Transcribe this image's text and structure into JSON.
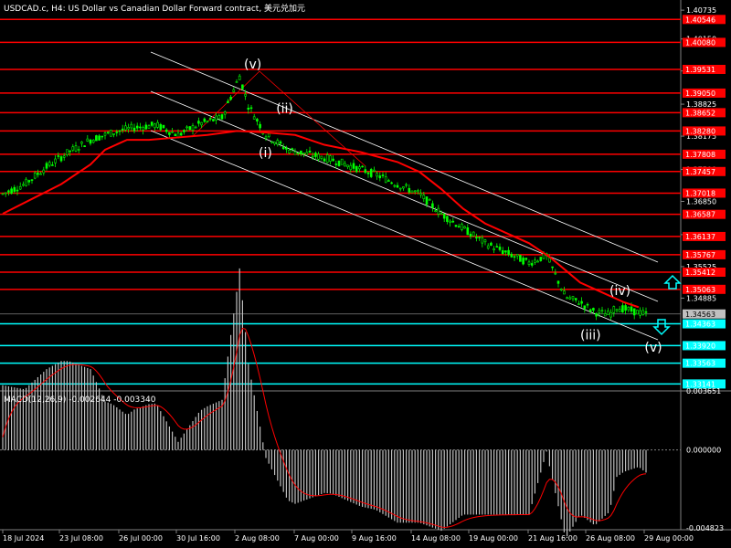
{
  "window": {
    "title": "USDCAD.c, H4:  US Dollar vs Canadian Dollar Forward contract, 美元兑加元",
    "macd_title": "MACD(12,26,9) -0.002644 -0.003340"
  },
  "colors": {
    "background": "#000000",
    "candle": "#00ff00",
    "ma": "#ff0000",
    "resistance": "#ff0000",
    "support": "#00ffff",
    "channel": "#ffffff",
    "macd_hist": "#c0c0c0",
    "macd_signal": "#ff0000"
  },
  "chart_data": [
    {
      "type": "candlestick",
      "symbol": "USDCAD.c",
      "timeframe": "H4",
      "y_range": [
        1.33,
        1.4083
      ],
      "x_labels": [
        "18 Jul 2024",
        "23 Jul 08:00",
        "26 Jul 00:00",
        "30 Jul 16:00",
        "2 Aug 08:00",
        "7 Aug 00:00",
        "9 Aug 16:00",
        "14 Aug 08:00",
        "19 Aug 00:00",
        "21 Aug 16:00",
        "26 Aug 08:00",
        "29 Aug 00:00"
      ],
      "y_ticks": [
        "1.40735",
        "1.40150",
        "1.39500",
        "1.38825",
        "1.38175",
        "1.37500",
        "1.36850",
        "1.36175",
        "1.35525",
        "1.34885"
      ],
      "resistance_levels": [
        1.40546,
        1.4008,
        1.39531,
        1.3905,
        1.38652,
        1.3828,
        1.37808,
        1.37457,
        1.37018,
        1.36587,
        1.36137,
        1.35767,
        1.35412,
        1.35063
      ],
      "support_levels": [
        1.34363,
        1.3392,
        1.33563,
        1.33141
      ],
      "current_price": 1.34563,
      "price_path": [
        [
          0,
          1.37
        ],
        [
          15,
          1.372
        ],
        [
          30,
          1.3755
        ],
        [
          45,
          1.3785
        ],
        [
          60,
          1.381
        ],
        [
          75,
          1.3825
        ],
        [
          90,
          1.3835
        ],
        [
          105,
          1.384
        ],
        [
          120,
          1.382
        ],
        [
          135,
          1.3843
        ],
        [
          150,
          1.3855
        ],
        [
          162,
          1.394
        ],
        [
          168,
          1.388
        ],
        [
          180,
          1.382
        ],
        [
          195,
          1.379
        ],
        [
          210,
          1.378
        ],
        [
          225,
          1.377
        ],
        [
          240,
          1.3755
        ],
        [
          255,
          1.374
        ],
        [
          270,
          1.372
        ],
        [
          285,
          1.37
        ],
        [
          300,
          1.366
        ],
        [
          315,
          1.363
        ],
        [
          330,
          1.36
        ],
        [
          345,
          1.358
        ],
        [
          360,
          1.356
        ],
        [
          372,
          1.3575
        ],
        [
          385,
          1.349
        ],
        [
          395,
          1.348
        ],
        [
          405,
          1.346
        ],
        [
          415,
          1.3455
        ],
        [
          420,
          1.347
        ],
        [
          430,
          1.3463
        ],
        [
          440,
          1.3456
        ]
      ],
      "ma_path": [
        [
          0,
          1.366
        ],
        [
          20,
          1.369
        ],
        [
          40,
          1.372
        ],
        [
          60,
          1.376
        ],
        [
          70,
          1.379
        ],
        [
          85,
          1.381
        ],
        [
          100,
          1.381
        ],
        [
          120,
          1.3815
        ],
        [
          140,
          1.382
        ],
        [
          160,
          1.3828
        ],
        [
          180,
          1.3825
        ],
        [
          200,
          1.382
        ],
        [
          220,
          1.38
        ],
        [
          245,
          1.3785
        ],
        [
          270,
          1.3765
        ],
        [
          285,
          1.3745
        ],
        [
          300,
          1.371
        ],
        [
          315,
          1.367
        ],
        [
          330,
          1.364
        ],
        [
          345,
          1.362
        ],
        [
          360,
          1.36
        ],
        [
          375,
          1.357
        ],
        [
          395,
          1.352
        ],
        [
          410,
          1.35
        ],
        [
          425,
          1.348
        ],
        [
          435,
          1.347
        ]
      ],
      "macd": {
        "value": -0.002644,
        "signal": -0.00334,
        "y_ticks": [
          "0.003651",
          "0.000000",
          "-0.004823"
        ],
        "y_range": [
          -0.004823,
          0.003651
        ]
      },
      "wave_labels": [
        {
          "text": "(v)",
          "bar": 170,
          "price": 1.3955
        },
        {
          "text": "(ii)",
          "bar": 192,
          "price": 1.3865
        },
        {
          "text": "(i)",
          "bar": 180,
          "price": 1.3775
        },
        {
          "text": "(iv)",
          "bar": 420,
          "price": 1.3495
        },
        {
          "text": "(iii)",
          "bar": 400,
          "price": 1.3405
        },
        {
          "text": "(v)",
          "bar": 444,
          "price": 1.338
        }
      ]
    }
  ]
}
